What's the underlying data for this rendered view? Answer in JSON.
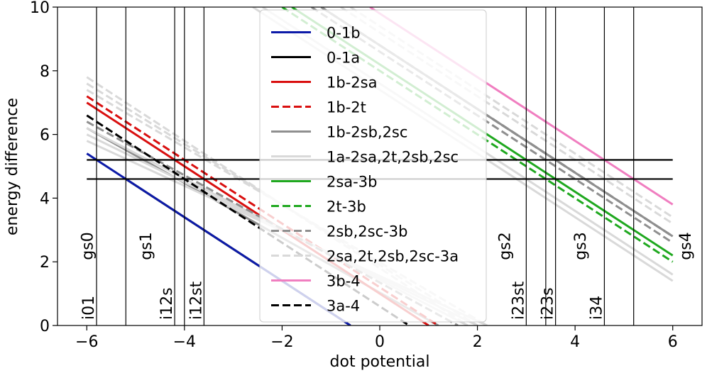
{
  "chart_data": {
    "type": "line",
    "xlabel": "dot potential",
    "ylabel": "energy difference",
    "xlim": [
      -6.6,
      6.6
    ],
    "ylim": [
      0,
      10
    ],
    "xticks": [
      -6,
      -4,
      -2,
      0,
      2,
      4,
      6
    ],
    "yticks": [
      0,
      2,
      4,
      6,
      8,
      10
    ],
    "xtick_labels": [
      "−6",
      "−4",
      "−2",
      "0",
      "2",
      "4",
      "6"
    ],
    "ytick_labels": [
      "0",
      "2",
      "4",
      "6",
      "8",
      "10"
    ],
    "horizontal_lines": [
      5.2,
      4.6
    ],
    "vertical_lines": [
      {
        "x": -5.8,
        "label": "i01"
      },
      {
        "x": -5.2,
        "label": ""
      },
      {
        "x": -4.2,
        "label": "i12s"
      },
      {
        "x": -4.0,
        "label": ""
      },
      {
        "x": -3.6,
        "label": "i12st"
      },
      {
        "x": 3.0,
        "label": "i23st"
      },
      {
        "x": 3.4,
        "label": ""
      },
      {
        "x": 3.6,
        "label": "i23s"
      },
      {
        "x": 4.6,
        "label": "i34"
      },
      {
        "x": 5.2,
        "label": ""
      }
    ],
    "region_labels": [
      {
        "x": -6.0,
        "label": "gs0"
      },
      {
        "x": -4.8,
        "label": "gs1"
      },
      {
        "x": 2.55,
        "label": "gs2"
      },
      {
        "x": 4.1,
        "label": "gs3"
      },
      {
        "x": 6.25,
        "label": "gs4"
      }
    ],
    "series": [
      {
        "name": "0-1b",
        "color": "#0c1aa8",
        "dash": "solid",
        "x": [
          -6,
          -0.6
        ],
        "y": [
          5.4,
          0
        ]
      },
      {
        "name": "0-1a",
        "color": "#000000",
        "dash": "solid",
        "x": [],
        "y": []
      },
      {
        "name": "1b-2sa",
        "color": "#d90f0f",
        "dash": "solid",
        "x": [
          -6,
          1.0
        ],
        "y": [
          7.0,
          0
        ]
      },
      {
        "name": "1b-2t",
        "color": "#d90f0f",
        "dash": "dashed",
        "x": [
          -6,
          1.2
        ],
        "y": [
          7.2,
          0
        ]
      },
      {
        "name": "1b-2sb,2sc",
        "color": "#8f8f8f",
        "dash": "solid",
        "x": [],
        "y": []
      },
      {
        "name": "1a-2sa,2t,2sb,2sc",
        "color": "#d9d9d9",
        "dash": "solid",
        "x": [
          -6,
          1.8
        ],
        "y": [
          6.2,
          0
        ]
      },
      {
        "name": "2sa-3b",
        "color": "#1fa81f",
        "dash": "solid",
        "x": [
          -1.8,
          6
        ],
        "y": [
          10,
          2.2
        ]
      },
      {
        "name": "2t-3b",
        "color": "#1fa81f",
        "dash": "dashed",
        "x": [
          -2.0,
          6
        ],
        "y": [
          10,
          2.0
        ]
      },
      {
        "name": "2sb,2sc-3b",
        "color": "#8f8f8f",
        "dash": "dashed",
        "x": [
          -6,
          1.6
        ],
        "y": [
          6.4,
          0
        ]
      },
      {
        "name": "2sa,2t,2sb,2sc-3a",
        "color": "#d9d9d9",
        "dash": "dashed",
        "x": [
          -6,
          1.8
        ],
        "y": [
          7.8,
          0
        ]
      },
      {
        "name": "3b-4",
        "color": "#f07ec0",
        "dash": "solid",
        "x": [
          -0.2,
          6
        ],
        "y": [
          10,
          3.8
        ]
      },
      {
        "name": "3a-4",
        "color": "#000000",
        "dash": "dashed",
        "x": [
          -6,
          0.6
        ],
        "y": [
          6.6,
          0
        ]
      }
    ],
    "extra_lines": [
      {
        "color": "#000000",
        "dash": "solid",
        "x": [
          -5.2,
          -0.6
        ],
        "y": [
          4.6,
          0
        ]
      },
      {
        "color": "#8f8f8f",
        "dash": "solid",
        "x": [
          -6,
          1.2
        ],
        "y": [
          6.2,
          0
        ]
      },
      {
        "color": "#000000",
        "dash": "dashed",
        "x": [
          -1.2,
          6
        ],
        "y": [
          10,
          2.8
        ]
      },
      {
        "color": "#8f8f8f",
        "dash": "solid",
        "x": [
          -1.2,
          6
        ],
        "y": [
          10,
          2.8
        ]
      },
      {
        "color": "#8f8f8f",
        "dash": "dashed",
        "x": [
          -1.4,
          6
        ],
        "y": [
          10,
          2.6
        ]
      },
      {
        "color": "#d9d9d9",
        "dash": "solid",
        "x": [
          -6,
          2.0
        ],
        "y": [
          6.0,
          0
        ]
      },
      {
        "color": "#d9d9d9",
        "dash": "solid",
        "x": [
          -6,
          2.2
        ],
        "y": [
          5.8,
          0
        ]
      },
      {
        "color": "#d9d9d9",
        "dash": "dashed",
        "x": [
          -6,
          2.0
        ],
        "y": [
          7.6,
          0
        ]
      },
      {
        "color": "#d9d9d9",
        "dash": "dashed",
        "x": [
          -6,
          2.2
        ],
        "y": [
          7.4,
          0
        ]
      },
      {
        "color": "#d9d9d9",
        "dash": "solid",
        "x": [
          -2.4,
          6
        ],
        "y": [
          10,
          1.6
        ]
      },
      {
        "color": "#d9d9d9",
        "dash": "solid",
        "x": [
          -2.6,
          6
        ],
        "y": [
          10,
          1.4
        ]
      },
      {
        "color": "#d9d9d9",
        "dash": "dashed",
        "x": [
          -0.6,
          6
        ],
        "y": [
          10,
          3.4
        ]
      },
      {
        "color": "#d9d9d9",
        "dash": "dashed",
        "x": [
          -0.8,
          6
        ],
        "y": [
          10,
          3.2
        ]
      }
    ]
  }
}
